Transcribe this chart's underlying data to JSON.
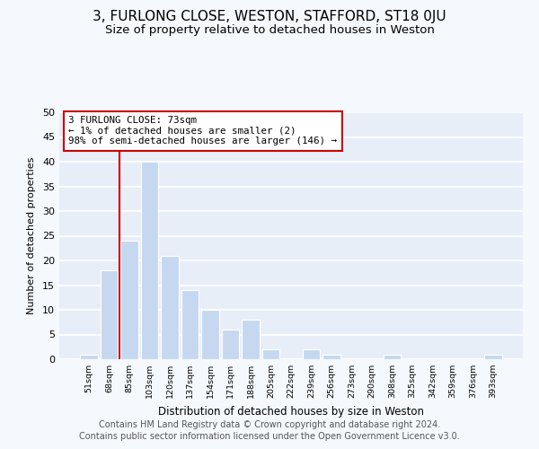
{
  "title": "3, FURLONG CLOSE, WESTON, STAFFORD, ST18 0JU",
  "subtitle": "Size of property relative to detached houses in Weston",
  "xlabel": "Distribution of detached houses by size in Weston",
  "ylabel": "Number of detached properties",
  "bar_color": "#c5d8f0",
  "bar_edge_color": "#c5d8f0",
  "categories": [
    "51sqm",
    "68sqm",
    "85sqm",
    "103sqm",
    "120sqm",
    "137sqm",
    "154sqm",
    "171sqm",
    "188sqm",
    "205sqm",
    "222sqm",
    "239sqm",
    "256sqm",
    "273sqm",
    "290sqm",
    "308sqm",
    "325sqm",
    "342sqm",
    "359sqm",
    "376sqm",
    "393sqm"
  ],
  "values": [
    1,
    18,
    24,
    40,
    21,
    14,
    10,
    6,
    8,
    2,
    0,
    2,
    1,
    0,
    0,
    1,
    0,
    0,
    0,
    0,
    1
  ],
  "ylim": [
    0,
    50
  ],
  "yticks": [
    0,
    5,
    10,
    15,
    20,
    25,
    30,
    35,
    40,
    45,
    50
  ],
  "property_line_color": "#cc0000",
  "annotation_line1": "3 FURLONG CLOSE: 73sqm",
  "annotation_line2": "← 1% of detached houses are smaller (2)",
  "annotation_line3": "98% of semi-detached houses are larger (146) →",
  "annotation_box_facecolor": "white",
  "annotation_box_edgecolor": "#cc0000",
  "footer_line1": "Contains HM Land Registry data © Crown copyright and database right 2024.",
  "footer_line2": "Contains public sector information licensed under the Open Government Licence v3.0.",
  "plot_bg_color": "#e8eef8",
  "fig_bg_color": "#f5f8fd",
  "grid_color": "white",
  "title_fontsize": 11,
  "subtitle_fontsize": 9.5,
  "footer_fontsize": 7
}
